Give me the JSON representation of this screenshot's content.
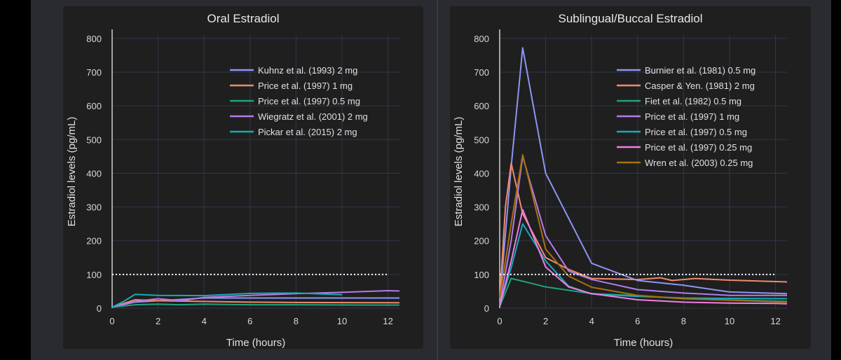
{
  "chart_data": [
    {
      "type": "line",
      "title": "Oral Estradiol",
      "xlabel": "Time (hours)",
      "ylabel": "Estradiol levels (pg/mL)",
      "xlim": [
        0,
        12.5
      ],
      "ylim": [
        0,
        810
      ],
      "xticks": [
        0,
        2,
        4,
        6,
        8,
        10,
        12
      ],
      "yticks": [
        0,
        100,
        200,
        300,
        400,
        500,
        600,
        700,
        800
      ],
      "reference_line": 100,
      "grid": true,
      "legend": "top-right",
      "series": [
        {
          "name": "Kuhnz et al. (1993) 2 mg",
          "color": "#8c96f2",
          "x": [
            0,
            1,
            2,
            4,
            6,
            8,
            12.5
          ],
          "y": [
            3,
            18,
            22,
            30,
            30,
            30,
            30
          ]
        },
        {
          "name": "Price et al. (1997) 1 mg",
          "color": "#f08a6e",
          "x": [
            0,
            1,
            2,
            4,
            6,
            8,
            12.5
          ],
          "y": [
            3,
            25,
            22,
            20,
            18,
            17,
            16
          ]
        },
        {
          "name": "Price et al. (1997) 0.5 mg",
          "color": "#1ea37a",
          "x": [
            0,
            1,
            2,
            3,
            4,
            6,
            8,
            12.5
          ],
          "y": [
            3,
            10,
            12,
            10,
            12,
            10,
            10,
            9
          ]
        },
        {
          "name": "Wiegratz et al. (2001) 2 mg",
          "color": "#b57be8",
          "x": [
            0,
            1,
            2,
            3,
            4,
            6,
            8,
            10,
            12,
            12.5
          ],
          "y": [
            3,
            20,
            28,
            22,
            32,
            38,
            43,
            47,
            52,
            51
          ]
        },
        {
          "name": "Pickar et al. (2015) 2 mg",
          "color": "#19a9b8",
          "x": [
            0,
            0.5,
            1,
            2,
            4,
            6,
            8,
            10
          ],
          "y": [
            3,
            20,
            41,
            38,
            37,
            44,
            45,
            40
          ]
        }
      ]
    },
    {
      "type": "line",
      "title": "Sublingual/Buccal Estradiol",
      "xlabel": "Time (hours)",
      "ylabel": "Estradiol levels (pg/mL)",
      "xlim": [
        0,
        12.5
      ],
      "ylim": [
        0,
        810
      ],
      "xticks": [
        0,
        2,
        4,
        6,
        8,
        10,
        12
      ],
      "yticks": [
        0,
        100,
        200,
        300,
        400,
        500,
        600,
        700,
        800
      ],
      "reference_line": 100,
      "grid": true,
      "legend": "top-right",
      "series": [
        {
          "name": "Burnier et al. (1981) 0.5 mg",
          "color": "#8c96f2",
          "x": [
            0,
            0.5,
            1,
            2,
            4,
            6,
            8,
            10,
            12.5
          ],
          "y": [
            20,
            420,
            772,
            400,
            133,
            82,
            68,
            48,
            43
          ]
        },
        {
          "name": "Casper & Yen. (1981) 2 mg",
          "color": "#f08a6e",
          "x": [
            0,
            0.25,
            0.5,
            1,
            2,
            3,
            4,
            6,
            7,
            7.5,
            8.5,
            10,
            12.5
          ],
          "y": [
            25,
            300,
            430,
            280,
            150,
            115,
            88,
            85,
            90,
            82,
            88,
            83,
            78
          ]
        },
        {
          "name": "Fiet et al. (1982) 0.5 mg",
          "color": "#1ea37a",
          "x": [
            0,
            0.5,
            1,
            2,
            4,
            6,
            8,
            12.5
          ],
          "y": [
            5,
            88,
            80,
            63,
            43,
            37,
            28,
            20
          ]
        },
        {
          "name": "Price et al. (1997) 1 mg",
          "color": "#b57be8",
          "x": [
            0,
            0.5,
            1,
            2,
            3,
            4,
            6,
            8,
            10,
            12.5
          ],
          "y": [
            10,
            200,
            450,
            215,
            110,
            85,
            55,
            45,
            38,
            38
          ]
        },
        {
          "name": "Price et al. (1997) 0.5 mg",
          "color": "#19a9b8",
          "x": [
            0,
            0.5,
            1,
            2,
            3,
            4,
            6,
            8,
            12.5
          ],
          "y": [
            8,
            120,
            250,
            140,
            65,
            42,
            35,
            30,
            28
          ]
        },
        {
          "name": "Price et al. (1997) 0.25 mg",
          "color": "#f07ee8",
          "x": [
            0,
            0.5,
            1,
            2,
            3,
            4,
            6,
            8,
            10,
            12,
            12.5
          ],
          "y": [
            5,
            140,
            292,
            122,
            63,
            43,
            25,
            18,
            15,
            14,
            13
          ]
        },
        {
          "name": "Wren et al. (2003) 0.25 mg",
          "color": "#a8700e",
          "x": [
            0,
            0.5,
            1,
            2,
            3,
            4,
            6,
            8,
            12.5
          ],
          "y": [
            30,
            250,
            455,
            175,
            95,
            62,
            38,
            28,
            18
          ]
        }
      ]
    }
  ]
}
